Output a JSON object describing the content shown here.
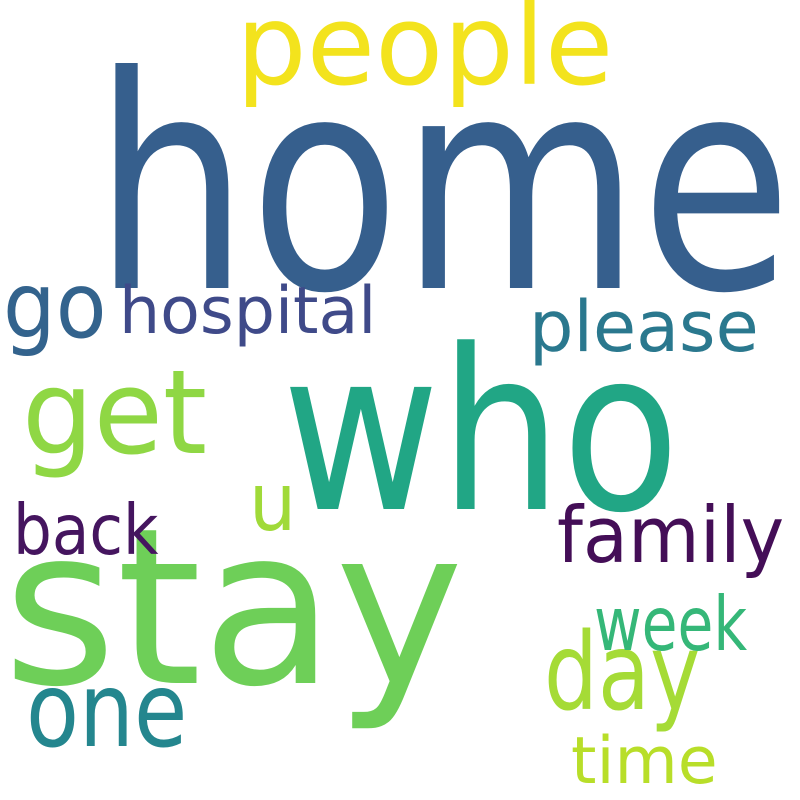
{
  "word_cloud": {
    "words": [
      {
        "text": "home",
        "color": "#365f8d"
      },
      {
        "text": "stay",
        "color": "#6ecf58"
      },
      {
        "text": "who",
        "color": "#21a685"
      },
      {
        "text": "people",
        "color": "#f3e31d"
      },
      {
        "text": "get",
        "color": "#8fd744"
      },
      {
        "text": "please",
        "color": "#2a788e"
      },
      {
        "text": "hospital",
        "color": "#3f4a89"
      },
      {
        "text": "go",
        "color": "#33638d"
      },
      {
        "text": "family",
        "color": "#440e57"
      },
      {
        "text": "day",
        "color": "#a5db36"
      },
      {
        "text": "one",
        "color": "#24868e"
      },
      {
        "text": "back",
        "color": "#45155f"
      },
      {
        "text": "week",
        "color": "#35b778"
      },
      {
        "text": "time",
        "color": "#b8de29"
      },
      {
        "text": "u",
        "color": "#a0da39"
      }
    ]
  }
}
